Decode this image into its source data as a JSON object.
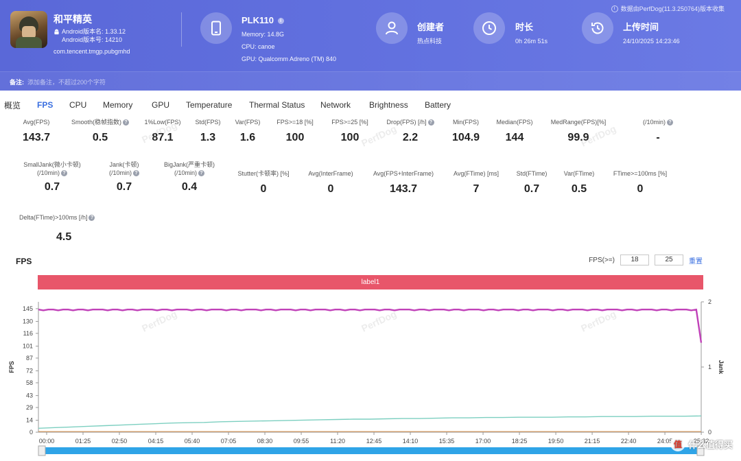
{
  "header": {
    "source_note": "数据由PerfDog(11.3.250764)版本收集",
    "app": {
      "name": "和平精英",
      "android_version_name": "Android版本名: 1.33.12",
      "android_version_code": "Android版本号: 14210",
      "package": "com.tencent.tmgp.pubgmhd"
    },
    "device": {
      "name": "PLK110",
      "memory": "Memory: 14.8G",
      "cpu": "CPU: canoe",
      "gpu": "GPU: Qualcomm Adreno (TM) 840"
    },
    "creator": {
      "title": "创建者",
      "value": "热点科技"
    },
    "duration": {
      "title": "时长",
      "value": "0h 26m 51s"
    },
    "upload": {
      "title": "上传时间",
      "value": "24/10/2025 14:23:46"
    },
    "note_label": "备注:",
    "note_placeholder": "添加备注，不超过200个字符"
  },
  "tabs": [
    "概览",
    "FPS",
    "CPU",
    "Memory",
    "GPU",
    "Temperature",
    "Thermal Status",
    "Network",
    "Brightness",
    "Battery"
  ],
  "active_tab": "FPS",
  "metrics_row1": [
    {
      "label": "Avg(FPS)",
      "value": "143.7"
    },
    {
      "label": "Smooth(稳帧指数)",
      "value": "0.5"
    },
    {
      "label": "1%Low(FPS)",
      "value": "87.1"
    },
    {
      "label": "Std(FPS)",
      "value": "1.3"
    },
    {
      "label": "Var(FPS)",
      "value": "1.6"
    },
    {
      "label": "FPS>=18 [%]",
      "value": "100"
    },
    {
      "label": "FPS>=25 [%]",
      "value": "100"
    },
    {
      "label": "Drop(FPS) [/h]",
      "value": "2.2"
    },
    {
      "label": "Min(FPS)",
      "value": "104.9"
    },
    {
      "label": "Median(FPS)",
      "value": "144"
    },
    {
      "label": "MedRange(FPS)[%]",
      "value": "99.9"
    },
    {
      "label": "(/10min)",
      "value": "-"
    }
  ],
  "metrics_row2": [
    {
      "label": "SmallJank(微小卡顿)",
      "label2": "(/10min)",
      "value": "0.7"
    },
    {
      "label": "Jank(卡顿)",
      "label2": "(/10min)",
      "value": "0.7"
    },
    {
      "label": "BigJank(严重卡顿)",
      "label2": "(/10min)",
      "value": "0.4"
    },
    {
      "label": "Stutter(卡顿率) [%]",
      "value": "0"
    },
    {
      "label": "Avg(InterFrame)",
      "value": "0"
    },
    {
      "label": "Avg(FPS+InterFrame)",
      "value": "143.7"
    },
    {
      "label": "Avg(FTime) [ms]",
      "value": "7"
    },
    {
      "label": "Std(FTime)",
      "value": "0.7"
    },
    {
      "label": "Var(FTime)",
      "value": "0.5"
    },
    {
      "label": "FTime>=100ms [%]",
      "value": "0"
    }
  ],
  "metrics_row3": [
    {
      "label": "Delta(FTime)>100ms [/h]",
      "value": "4.5"
    }
  ],
  "chart_section": {
    "title": "FPS",
    "threshold_label": "FPS(>=)",
    "threshold_1": "18",
    "threshold_2": "25",
    "reset_label": "重置",
    "label_bar": "label1"
  },
  "watermark": "PerfDog",
  "site_logo": "什么值得买",
  "colors": {
    "header_bg": "#5b69da",
    "fps_line": "#c040b8",
    "jank_line": "#7ccfc0",
    "label_bar": "#e8566a",
    "scroll_bar": "#2fa4e7"
  },
  "chart_data": {
    "type": "line",
    "title": "FPS",
    "xlabel": "",
    "ylabel": "FPS",
    "y2label": "Jank",
    "x_ticks": [
      "00:00",
      "01:25",
      "02:50",
      "04:15",
      "05:40",
      "07:05",
      "08:30",
      "09:55",
      "11:20",
      "12:45",
      "14:10",
      "15:35",
      "17:00",
      "18:25",
      "19:50",
      "21:15",
      "22:40",
      "24:05",
      "25:32"
    ],
    "y_ticks": [
      0,
      14,
      29,
      43,
      58,
      72,
      87,
      101,
      116,
      130,
      145
    ],
    "ylim": [
      0,
      153
    ],
    "y2_ticks": [
      0,
      1,
      2
    ],
    "y2lim": [
      0,
      2
    ],
    "x_range_seconds": [
      0,
      1611
    ],
    "series": [
      {
        "name": "FPS",
        "axis": "left",
        "values": [
          144,
          143,
          144,
          144,
          143,
          144,
          144,
          143,
          144,
          144,
          143,
          144,
          144,
          144,
          143,
          144,
          144,
          143,
          144,
          144,
          143,
          144,
          144,
          144,
          143,
          144,
          144,
          143,
          144,
          144,
          144,
          143,
          144,
          144,
          143,
          144,
          144,
          144,
          143,
          144,
          144,
          143,
          144,
          144,
          144,
          143,
          144,
          144,
          143,
          144,
          144,
          144,
          143,
          144,
          144,
          143,
          144,
          144,
          144,
          143,
          144,
          144,
          143,
          144,
          144,
          143,
          144,
          144,
          144,
          143,
          144,
          144,
          143,
          144,
          144,
          144,
          143,
          144,
          144,
          143,
          144,
          144,
          144,
          143,
          144,
          144,
          143,
          144,
          144,
          144,
          143,
          144,
          144,
          143,
          144,
          144,
          144,
          143,
          144,
          144,
          143,
          144,
          144,
          144,
          143,
          144,
          144,
          143,
          144,
          144,
          144,
          143,
          144,
          144,
          143,
          144,
          144,
          144,
          143,
          144,
          144,
          143,
          144,
          144,
          144,
          143,
          144,
          144,
          143,
          144,
          144,
          144,
          143,
          144,
          105
        ]
      },
      {
        "name": "Jank",
        "axis": "right",
        "values": [
          0.06,
          0.07,
          0.08,
          0.09,
          0.1,
          0.11,
          0.12,
          0.13,
          0.14,
          0.145,
          0.15,
          0.16,
          0.165,
          0.17,
          0.175,
          0.18,
          0.185,
          0.19,
          0.195,
          0.2,
          0.2,
          0.205,
          0.21,
          0.21,
          0.215,
          0.22,
          0.22,
          0.225,
          0.225,
          0.23,
          0.23,
          0.23,
          0.235,
          0.235,
          0.24,
          0.24,
          0.24,
          0.245,
          0.245,
          0.245,
          0.25
        ]
      }
    ]
  }
}
